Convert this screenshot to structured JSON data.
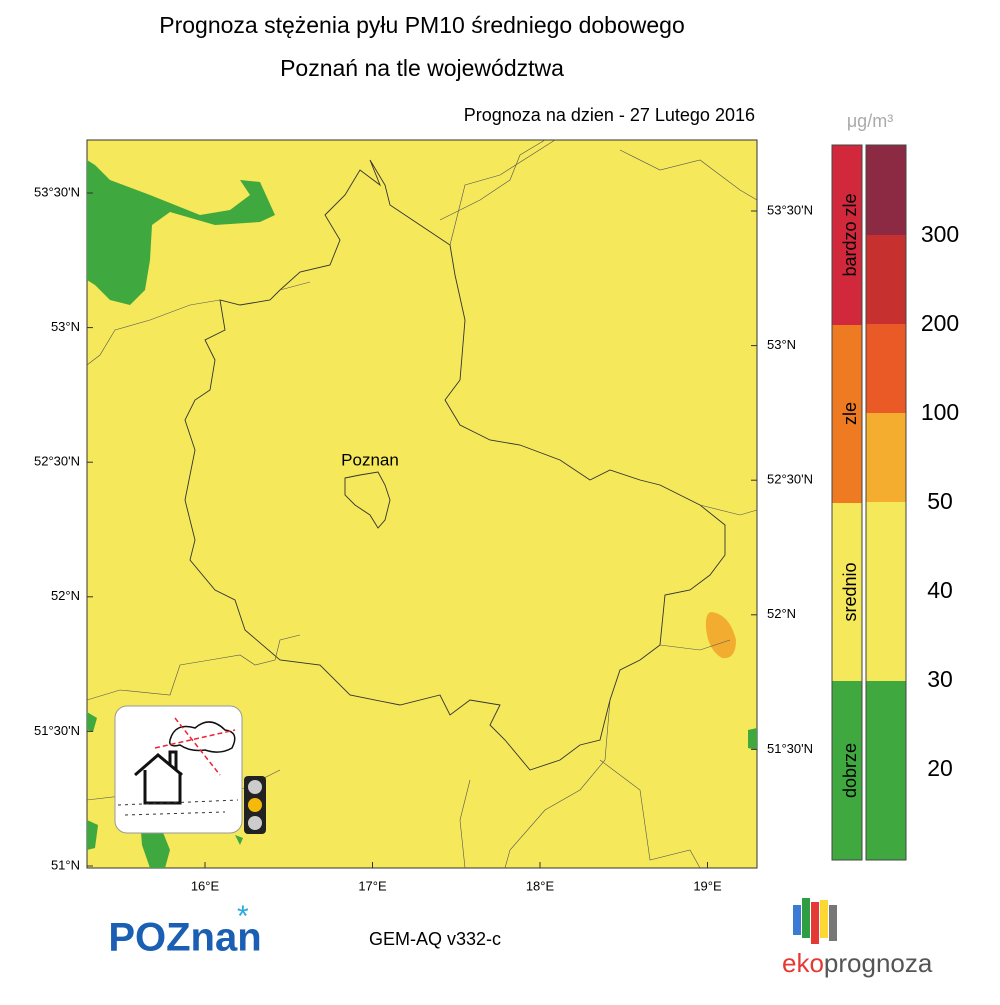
{
  "header": {
    "title": "Prognoza stężenia pyłu PM10 średniego dobowego",
    "subtitle": "Poznań na tle województwa",
    "date": "Prognoza na dzien -  27 Lutego 2016"
  },
  "map": {
    "city_label": "Poznan",
    "left_labels": [
      "53°30'N",
      "53°N",
      "52°30'N",
      "52°N",
      "51°30'N",
      "51°N"
    ],
    "right_labels": [
      "53°30'N",
      "53°N",
      "52°30'N",
      "52°N",
      "51°30'N"
    ],
    "bottom_labels": [
      "16°E",
      "17°E",
      "18°E",
      "19°E"
    ]
  },
  "legend": {
    "unit": "μg/m³",
    "categories": [
      "bardzo zle",
      "zle",
      "srednio",
      "dobrze"
    ],
    "scale": [
      300,
      200,
      100,
      50,
      40,
      30,
      20
    ]
  },
  "footer": {
    "model": "GEM-AQ v332-c",
    "logo_left": "POZnan",
    "logo_right_a": "eko",
    "logo_right_b": "prognoza"
  }
}
